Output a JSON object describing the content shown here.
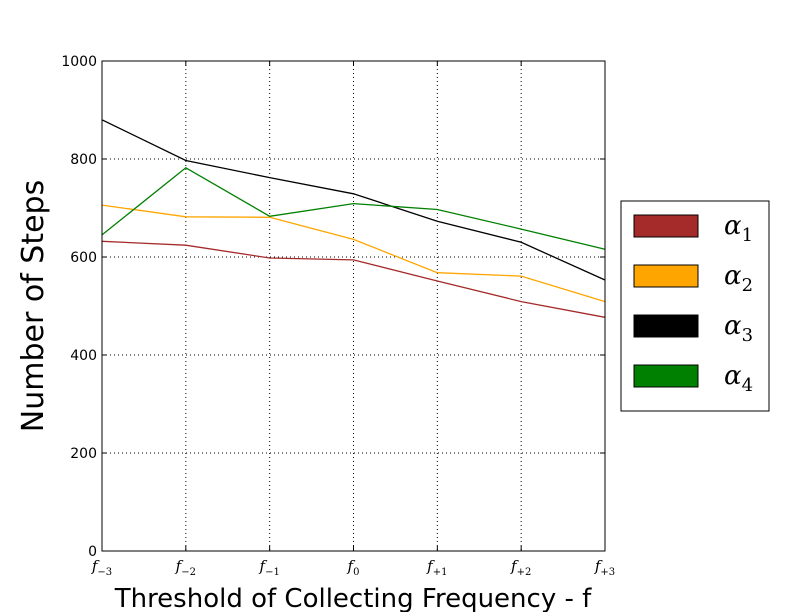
{
  "chart_data": {
    "type": "line",
    "title": "",
    "xlabel": "Threshold of Collecting Frequency - f",
    "ylabel": "Number of Steps",
    "categories": [
      {
        "base": "f",
        "sub": "−3"
      },
      {
        "base": "f",
        "sub": "−2"
      },
      {
        "base": "f",
        "sub": "−1"
      },
      {
        "base": "f",
        "sub": "0"
      },
      {
        "base": "f",
        "sub": "+1"
      },
      {
        "base": "f",
        "sub": "+2"
      },
      {
        "base": "f",
        "sub": "+3"
      }
    ],
    "ylim": [
      0,
      1000
    ],
    "yticks": [
      "0",
      "200",
      "400",
      "600",
      "800",
      "1000"
    ],
    "grid": true,
    "legend_position": "right",
    "series": [
      {
        "name": "α1",
        "base": "α",
        "sub": "1",
        "color": "#a52a2a",
        "values": [
          632,
          624,
          598,
          594,
          551,
          509,
          477
        ]
      },
      {
        "name": "α2",
        "base": "α",
        "sub": "2",
        "color": "#ffa500",
        "values": [
          706,
          682,
          681,
          636,
          568,
          561,
          509
        ]
      },
      {
        "name": "α3",
        "base": "α",
        "sub": "3",
        "color": "#000000",
        "values": [
          880,
          797,
          762,
          729,
          673,
          630,
          553
        ]
      },
      {
        "name": "α4",
        "base": "α",
        "sub": "4",
        "color": "#008000",
        "values": [
          645,
          782,
          683,
          709,
          697,
          657,
          616
        ]
      }
    ]
  }
}
